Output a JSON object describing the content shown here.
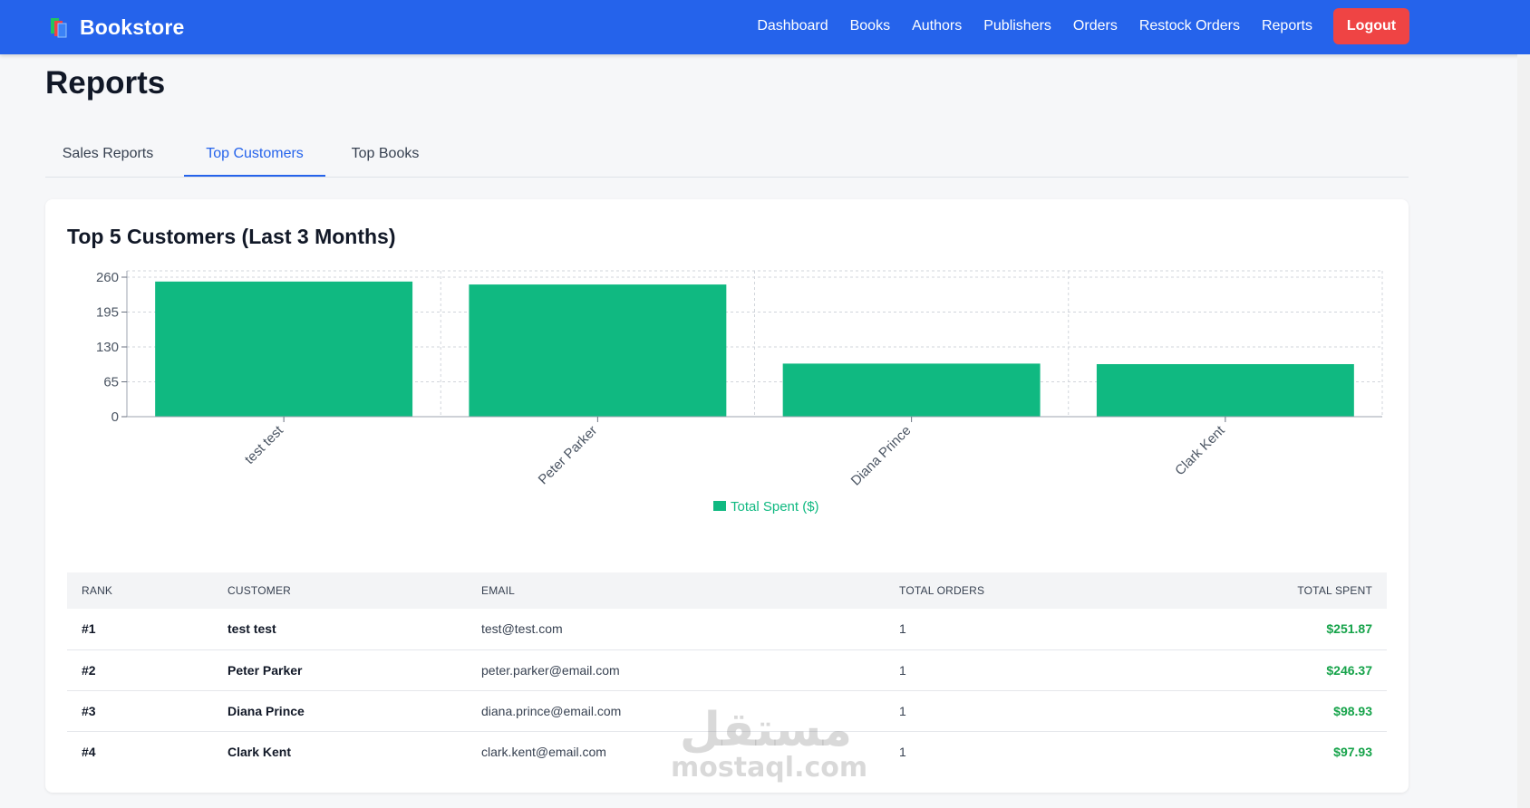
{
  "nav": {
    "brand": "Bookstore",
    "links": [
      "Dashboard",
      "Books",
      "Authors",
      "Publishers",
      "Orders",
      "Restock Orders",
      "Reports"
    ],
    "logout_label": "Logout"
  },
  "page": {
    "title": "Reports"
  },
  "tabs": [
    {
      "label": "Sales Reports",
      "active": false
    },
    {
      "label": "Top Customers",
      "active": true
    },
    {
      "label": "Top Books",
      "active": false
    }
  ],
  "card": {
    "title": "Top 5 Customers (Last 3 Months)"
  },
  "chart_data": {
    "type": "bar",
    "categories": [
      "test test",
      "Peter Parker",
      "Diana Prince",
      "Clark Kent"
    ],
    "series": [
      {
        "name": "Total Spent ($)",
        "values": [
          251.87,
          246.37,
          98.93,
          97.93
        ],
        "color": "#10b981"
      }
    ],
    "yticks": [
      0,
      65,
      130,
      195,
      260
    ],
    "ylim": [
      0,
      260
    ],
    "grid": true,
    "legend": "bottom-center"
  },
  "table": {
    "headers": [
      "Rank",
      "Customer",
      "Email",
      "Total Orders",
      "Total Spent"
    ],
    "rows": [
      {
        "rank": "#1",
        "customer": "test test",
        "email": "test@test.com",
        "orders": "1",
        "spent": "$251.87"
      },
      {
        "rank": "#2",
        "customer": "Peter Parker",
        "email": "peter.parker@email.com",
        "orders": "1",
        "spent": "$246.37"
      },
      {
        "rank": "#3",
        "customer": "Diana Prince",
        "email": "diana.prince@email.com",
        "orders": "1",
        "spent": "$98.93"
      },
      {
        "rank": "#4",
        "customer": "Clark Kent",
        "email": "clark.kent@email.com",
        "orders": "1",
        "spent": "$97.93"
      }
    ]
  },
  "watermark": {
    "arabic": "مستقل",
    "latin": "mostaql.com"
  },
  "colors": {
    "nav": "#2563eb",
    "accent": "#2563eb",
    "logout": "#ef4444",
    "bar": "#10b981",
    "money": "#16a34a"
  }
}
